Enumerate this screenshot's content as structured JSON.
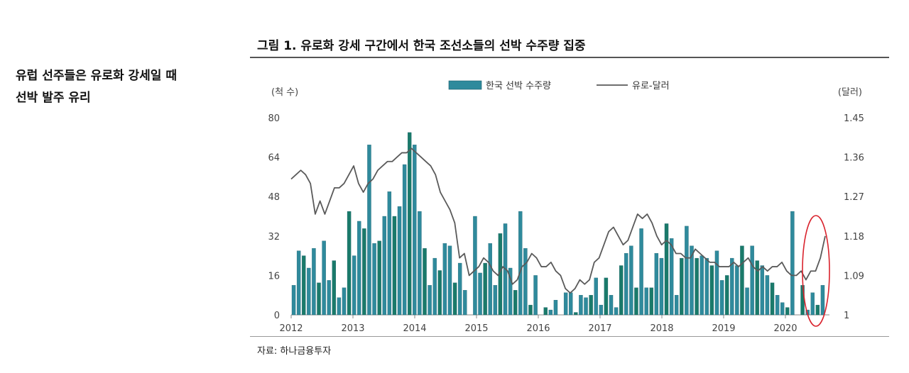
{
  "side_note": {
    "line1": "유럽 선주들은 유로화 강세일 때",
    "line2": "선박 발주 유리"
  },
  "figure_title": "그림 1. 유로화 강세 구간에서 한국 조선소들의 선박 수주량 집중",
  "source": "자료: 하나금융투자",
  "colors": {
    "bar": "#2f8a9c",
    "bar_alt": "#1a7a6a",
    "line": "#5a5a5a",
    "highlight": "#d9232d"
  },
  "chart_data": {
    "type": "bar+line",
    "left_unit": "(척 수)",
    "right_unit": "(달러)",
    "legend": {
      "bar": "한국 선박 수주량",
      "line": "유로-달러",
      "position": "top-center"
    },
    "y_left": {
      "min": 0,
      "max": 80,
      "ticks": [
        "0",
        "16",
        "32",
        "48",
        "64",
        "80"
      ]
    },
    "y_right": {
      "min": 1.0,
      "max": 1.45,
      "ticks": [
        "1",
        "1.09",
        "1.18",
        "1.27",
        "1.36",
        "1.45"
      ]
    },
    "x_ticks": [
      "2012",
      "2013",
      "2014",
      "2015",
      "2016",
      "2017",
      "2018",
      "2019",
      "2020"
    ],
    "x_range": {
      "start_year": 2012,
      "months": 91
    },
    "grid": false,
    "highlight": "2020 ellipse",
    "bars": [
      12,
      26,
      24,
      19,
      27,
      13,
      30,
      14,
      22,
      7,
      11,
      42,
      24,
      38,
      35,
      69,
      29,
      30,
      40,
      50,
      40,
      44,
      61,
      74,
      69,
      42,
      27,
      12,
      23,
      18,
      29,
      28,
      13,
      21,
      10,
      0,
      40,
      17,
      21,
      29,
      12,
      33,
      37,
      19,
      10,
      42,
      27,
      4,
      16,
      0,
      3,
      2,
      6,
      0,
      9,
      9,
      1,
      8,
      7,
      8,
      15,
      4,
      15,
      8,
      3,
      20,
      25,
      28,
      11,
      35,
      11,
      11,
      25,
      23,
      37,
      31,
      8,
      23,
      36,
      28,
      23,
      24,
      23,
      20,
      26,
      14,
      16,
      23,
      20,
      28,
      11
    ],
    "bars_2020": [
      28,
      22,
      20,
      16,
      13,
      8,
      5,
      3,
      42,
      0,
      12,
      2,
      9,
      4,
      12
    ],
    "euro_usd": [
      1.31,
      1.32,
      1.33,
      1.32,
      1.3,
      1.23,
      1.26,
      1.23,
      1.26,
      1.29,
      1.29,
      1.3,
      1.32,
      1.34,
      1.3,
      1.28,
      1.3,
      1.31,
      1.33,
      1.34,
      1.35,
      1.35,
      1.36,
      1.37,
      1.37,
      1.38,
      1.37,
      1.36,
      1.35,
      1.34,
      1.32,
      1.28,
      1.26,
      1.24,
      1.21,
      1.13,
      1.14,
      1.09,
      1.1,
      1.11,
      1.13,
      1.12,
      1.1,
      1.09,
      1.11,
      1.1,
      1.07,
      1.08,
      1.11,
      1.12,
      1.14,
      1.13,
      1.11,
      1.11,
      1.12,
      1.1,
      1.09,
      1.06,
      1.05,
      1.06,
      1.08,
      1.07,
      1.08,
      1.12,
      1.13,
      1.16,
      1.19,
      1.2,
      1.18,
      1.16,
      1.17,
      1.2,
      1.23,
      1.22,
      1.23,
      1.21,
      1.18,
      1.16,
      1.17,
      1.16,
      1.14,
      1.14,
      1.13,
      1.13,
      1.15,
      1.14,
      1.13,
      1.12,
      1.12,
      1.11,
      1.11,
      1.11,
      1.12,
      1.11,
      1.12,
      1.13,
      1.11,
      1.1,
      1.11,
      1.1,
      1.11,
      1.11,
      1.12,
      1.1,
      1.09,
      1.09,
      1.1,
      1.08,
      1.1,
      1.1,
      1.13,
      1.18
    ]
  }
}
